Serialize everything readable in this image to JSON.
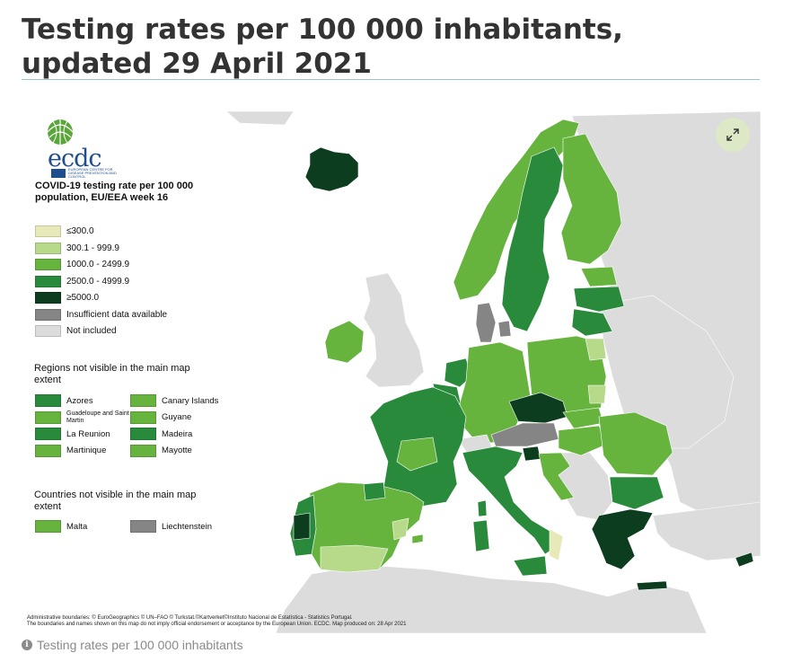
{
  "page": {
    "title": "Testing rates per 100 000 inhabitants, updated 29 April 2021",
    "caption": "Testing rates per 100 000 inhabitants"
  },
  "logo": {
    "text": "ecdc",
    "subtitle": "EUROPEAN CENTRE FOR DISEASE PREVENTION AND CONTROL"
  },
  "legend": {
    "title": "COVID-19 testing rate per 100 000 population, EU/EEA week 16",
    "classes": [
      {
        "label": "≤300.0",
        "color": "#e8e9b8"
      },
      {
        "label": "300.1 - 999.9",
        "color": "#b7d98a"
      },
      {
        "label": "1000.0 - 2499.9",
        "color": "#66b33e"
      },
      {
        "label": "2500.0 - 4999.9",
        "color": "#2a8a3c"
      },
      {
        "label": "≥5000.0",
        "color": "#0b3d1e"
      },
      {
        "label": "Insufficient data available",
        "color": "#858585"
      },
      {
        "label": "Not included",
        "color": "#dcdcdc"
      }
    ]
  },
  "regions": {
    "title": "Regions not visible in the main map extent",
    "items": [
      {
        "label": "Azores",
        "color": "#2a8a3c"
      },
      {
        "label": "Guadeloupe and Saint Martin",
        "color": "#66b33e"
      },
      {
        "label": "La Reunion",
        "color": "#2a8a3c"
      },
      {
        "label": "Martinique",
        "color": "#66b33e"
      },
      {
        "label": "Canary Islands",
        "color": "#66b33e"
      },
      {
        "label": "Guyane",
        "color": "#66b33e"
      },
      {
        "label": "Madeira",
        "color": "#2a8a3c"
      },
      {
        "label": "Mayotte",
        "color": "#66b33e"
      }
    ]
  },
  "countries": {
    "title": "Countries not visible in the main map extent",
    "items": [
      {
        "label": "Malta",
        "color": "#66b33e"
      },
      {
        "label": "Liechtenstein",
        "color": "#858585"
      }
    ]
  },
  "footnote": {
    "line1": "Administrative boundaries: © EuroGeographics © UN–FAO © Turkstat.©Kartverket©Instituto Nacional de Estatística - Statistics Portugal.",
    "line2": "The boundaries and names shown on this map do not imply official endorsement or acceptance by the European Union. ECDC. Map produced on: 28 Apr 2021"
  },
  "colors": {
    "sea": "#ffffff",
    "non_included": "#dcdcdc",
    "border": "#ffffff"
  },
  "icons": {
    "expand": "expand-icon",
    "info": "info-icon"
  }
}
